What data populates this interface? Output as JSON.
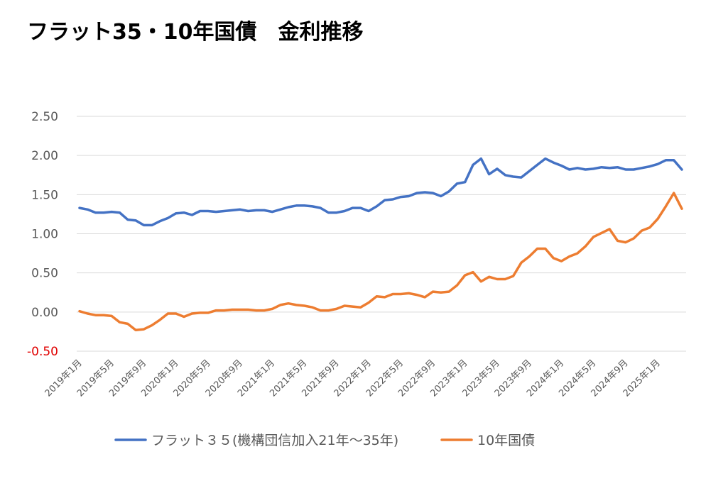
{
  "chart_data": {
    "type": "line",
    "title": "フラット35・10年国債　金利推移",
    "xlabel": "",
    "ylabel": "",
    "ylim": [
      -0.5,
      2.5
    ],
    "yticks": [
      2.5,
      2.0,
      1.5,
      1.0,
      0.5,
      0.0,
      -0.5
    ],
    "ytick_labels": [
      "2.50",
      "2.00",
      "1.50",
      "1.00",
      "0.50",
      "0.00",
      "-0.50"
    ],
    "negative_tick_color": "#e00000",
    "grid": true,
    "legend_position": "bottom",
    "x": [
      "2019年1月",
      "2019年2月",
      "2019年3月",
      "2019年4月",
      "2019年5月",
      "2019年6月",
      "2019年7月",
      "2019年8月",
      "2019年9月",
      "2019年10月",
      "2019年11月",
      "2019年12月",
      "2020年1月",
      "2020年2月",
      "2020年3月",
      "2020年4月",
      "2020年5月",
      "2020年6月",
      "2020年7月",
      "2020年8月",
      "2020年9月",
      "2020年10月",
      "2020年11月",
      "2020年12月",
      "2021年1月",
      "2021年2月",
      "2021年3月",
      "2021年4月",
      "2021年5月",
      "2021年6月",
      "2021年7月",
      "2021年8月",
      "2021年9月",
      "2021年10月",
      "2021年11月",
      "2021年12月",
      "2022年1月",
      "2022年2月",
      "2022年3月",
      "2022年4月",
      "2022年5月",
      "2022年6月",
      "2022年7月",
      "2022年8月",
      "2022年9月",
      "2022年10月",
      "2022年11月",
      "2022年12月",
      "2023年1月",
      "2023年2月",
      "2023年3月",
      "2023年4月",
      "2023年5月",
      "2023年6月",
      "2023年7月",
      "2023年8月",
      "2023年9月",
      "2023年10月",
      "2023年11月",
      "2023年12月",
      "2024年1月",
      "2024年2月",
      "2024年3月",
      "2024年4月",
      "2024年5月",
      "2024年6月",
      "2024年7月",
      "2024年8月",
      "2024年9月",
      "2024年10月",
      "2024年11月",
      "2024年12月",
      "2025年1月",
      "2025年2月",
      "2025年3月",
      "2025年4月"
    ],
    "x_tick_labels": [
      "2019年1月",
      "2019年5月",
      "2019年9月",
      "2020年1月",
      "2020年5月",
      "2020年9月",
      "2021年1月",
      "2021年5月",
      "2021年9月",
      "2022年1月",
      "2022年5月",
      "2022年9月",
      "2023年1月",
      "2023年5月",
      "2023年9月",
      "2024年1月",
      "2024年5月",
      "2024年9月",
      "2025年1月"
    ],
    "series": [
      {
        "name": "フラット３５(機構団信加入21年〜35年)",
        "color": "#4472c4",
        "values": [
          1.33,
          1.31,
          1.27,
          1.27,
          1.28,
          1.27,
          1.18,
          1.17,
          1.11,
          1.11,
          1.16,
          1.2,
          1.26,
          1.27,
          1.24,
          1.29,
          1.29,
          1.28,
          1.29,
          1.3,
          1.31,
          1.29,
          1.3,
          1.3,
          1.28,
          1.31,
          1.34,
          1.36,
          1.36,
          1.35,
          1.33,
          1.27,
          1.27,
          1.29,
          1.33,
          1.33,
          1.29,
          1.35,
          1.43,
          1.44,
          1.47,
          1.48,
          1.52,
          1.53,
          1.52,
          1.48,
          1.54,
          1.64,
          1.66,
          1.88,
          1.96,
          1.76,
          1.83,
          1.75,
          1.73,
          1.72,
          1.8,
          1.88,
          1.96,
          1.91,
          1.87,
          1.82,
          1.84,
          1.82,
          1.83,
          1.85,
          1.84,
          1.85,
          1.82,
          1.82,
          1.84,
          1.86,
          1.89,
          1.94,
          1.94,
          1.82
        ]
      },
      {
        "name": "10年国債",
        "color": "#ed7d31",
        "values": [
          0.01,
          -0.02,
          -0.04,
          -0.04,
          -0.05,
          -0.13,
          -0.15,
          -0.23,
          -0.22,
          -0.17,
          -0.1,
          -0.02,
          -0.02,
          -0.06,
          -0.02,
          -0.01,
          -0.01,
          0.02,
          0.02,
          0.03,
          0.03,
          0.03,
          0.02,
          0.02,
          0.04,
          0.09,
          0.11,
          0.09,
          0.08,
          0.06,
          0.02,
          0.02,
          0.04,
          0.08,
          0.07,
          0.06,
          0.12,
          0.2,
          0.19,
          0.23,
          0.23,
          0.24,
          0.22,
          0.19,
          0.26,
          0.25,
          0.26,
          0.34,
          0.47,
          0.51,
          0.39,
          0.45,
          0.42,
          0.42,
          0.46,
          0.63,
          0.71,
          0.81,
          0.81,
          0.69,
          0.65,
          0.71,
          0.75,
          0.84,
          0.96,
          1.01,
          1.06,
          0.91,
          0.89,
          0.94,
          1.04,
          1.08,
          1.19,
          1.35,
          1.52,
          1.32
        ]
      }
    ]
  }
}
